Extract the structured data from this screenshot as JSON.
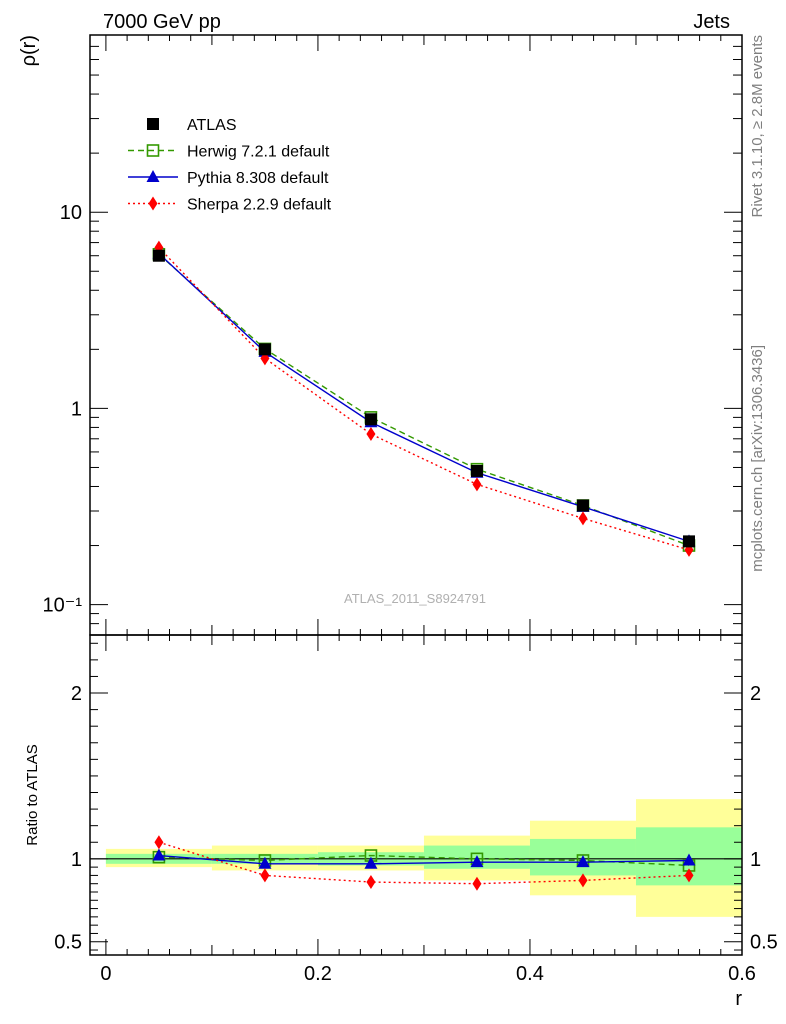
{
  "header": {
    "left": "7000 GeV pp",
    "right": "Jets"
  },
  "side_text": {
    "top": "Rivet 3.1.10, ≥ 2.8M events",
    "bottom": "mcplots.cern.ch [arXiv:1306.3436]"
  },
  "watermark": "ATLAS_2011_S8924791",
  "colors": {
    "atlas": "#000000",
    "herwig": "#339900",
    "pythia": "#0000cc",
    "sherpa": "#ff0000",
    "band_outer": "#ffff99",
    "band_inner": "#99ff99"
  },
  "chart_data": [
    {
      "type": "line",
      "ylabel": "ρ(r)",
      "yscale": "log",
      "ylim": [
        0.07,
        80
      ],
      "xlim": [
        -0.015,
        0.6
      ],
      "ytick_labels": [
        "10⁻¹",
        "1",
        "10"
      ],
      "legend_position": "top-left",
      "x": [
        0.05,
        0.15,
        0.25,
        0.35,
        0.45,
        0.55
      ],
      "series": [
        {
          "name": "ATLAS",
          "values": [
            6.0,
            2.0,
            0.88,
            0.48,
            0.32,
            0.21
          ],
          "marker": "square",
          "line": "none"
        },
        {
          "name": "Herwig 7.2.1 default",
          "values": [
            6.1,
            2.01,
            0.9,
            0.49,
            0.32,
            0.2
          ],
          "marker": "open-square",
          "line": "dashed"
        },
        {
          "name": "Pythia 8.308 default",
          "values": [
            6.15,
            1.94,
            0.85,
            0.47,
            0.315,
            0.21
          ],
          "marker": "triangle",
          "line": "solid"
        },
        {
          "name": "Sherpa 2.2.9 default",
          "values": [
            6.6,
            1.8,
            0.74,
            0.41,
            0.275,
            0.19
          ],
          "marker": "diamond",
          "line": "dotted"
        }
      ]
    },
    {
      "type": "line",
      "ylabel": "Ratio to ATLAS",
      "xlabel": "r",
      "ylim": [
        0.42,
        2.35
      ],
      "xlim": [
        -0.015,
        0.6
      ],
      "yticks": [
        0.5,
        1,
        2
      ],
      "ytick_labels": [
        "0.5",
        "1",
        "2"
      ],
      "xticks": [
        0,
        0.2,
        0.4,
        0.6
      ],
      "xtick_labels": [
        "0",
        "0.2",
        "0.4",
        "0.6"
      ],
      "x": [
        0.05,
        0.15,
        0.25,
        0.35,
        0.45,
        0.55
      ],
      "uncertainty_bands": [
        {
          "x_range": [
            0.0,
            0.1
          ],
          "inner": [
            0.97,
            1.03
          ],
          "outer": [
            0.95,
            1.06
          ]
        },
        {
          "x_range": [
            0.1,
            0.2
          ],
          "inner": [
            0.97,
            1.03
          ],
          "outer": [
            0.93,
            1.08
          ]
        },
        {
          "x_range": [
            0.2,
            0.3
          ],
          "inner": [
            0.96,
            1.04
          ],
          "outer": [
            0.93,
            1.08
          ]
        },
        {
          "x_range": [
            0.3,
            0.4
          ],
          "inner": [
            0.94,
            1.08
          ],
          "outer": [
            0.87,
            1.14
          ]
        },
        {
          "x_range": [
            0.4,
            0.5
          ],
          "inner": [
            0.9,
            1.12
          ],
          "outer": [
            0.78,
            1.23
          ]
        },
        {
          "x_range": [
            0.5,
            0.6
          ],
          "inner": [
            0.84,
            1.19
          ],
          "outer": [
            0.65,
            1.36
          ]
        }
      ],
      "series": [
        {
          "name": "Herwig 7.2.1 default",
          "values": [
            1.01,
            0.99,
            1.02,
            1.0,
            0.99,
            0.96
          ]
        },
        {
          "name": "Pythia 8.308 default",
          "values": [
            1.02,
            0.97,
            0.97,
            0.98,
            0.98,
            0.99
          ]
        },
        {
          "name": "Sherpa 2.2.9 default",
          "values": [
            1.1,
            0.9,
            0.86,
            0.85,
            0.87,
            0.9
          ]
        }
      ]
    }
  ]
}
